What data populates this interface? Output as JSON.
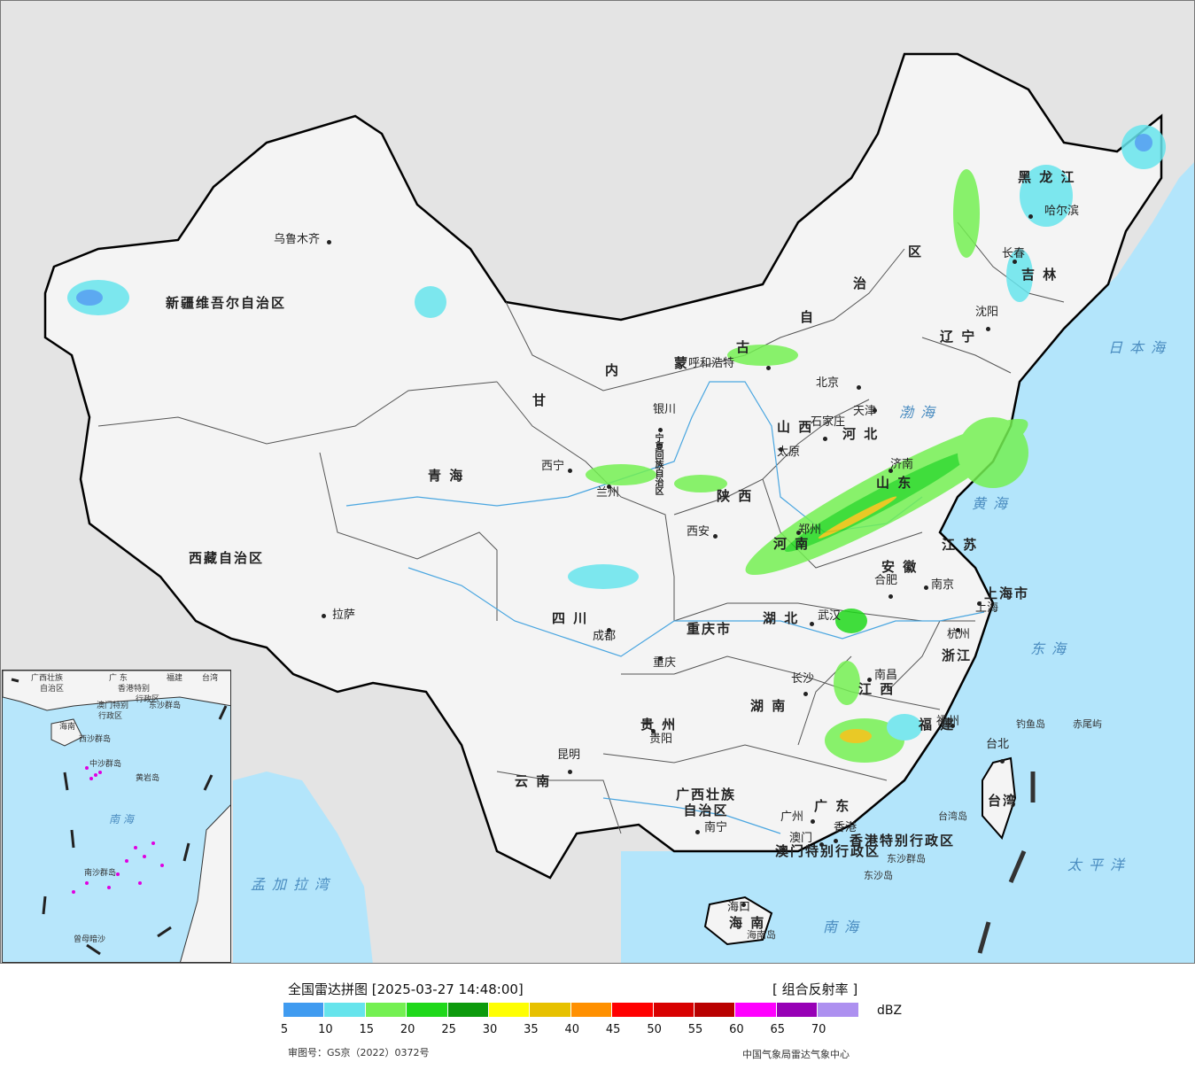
{
  "map": {
    "provinces": [
      {
        "id": "xinjiang",
        "name": "新疆维吾尔自治区"
      },
      {
        "id": "xizang",
        "name": "西藏自治区"
      },
      {
        "id": "qinghai",
        "name": "青     海"
      },
      {
        "id": "gansu",
        "name": "甘"
      },
      {
        "id": "neimenggu1",
        "name": "内"
      },
      {
        "id": "neimenggu2",
        "name": "蒙"
      },
      {
        "id": "neimenggu3",
        "name": "古"
      },
      {
        "id": "neimenggu4",
        "name": "自"
      },
      {
        "id": "neimenggu5",
        "name": "治"
      },
      {
        "id": "neimenggu6",
        "name": "区"
      },
      {
        "id": "heilongjiang",
        "name": "黑  龙  江"
      },
      {
        "id": "jilin",
        "name": "吉  林"
      },
      {
        "id": "liaoning",
        "name": "辽  宁"
      },
      {
        "id": "hebei",
        "name": "河  北"
      },
      {
        "id": "shanxi",
        "name": "山  西"
      },
      {
        "id": "shaanxi",
        "name": "陕  西"
      },
      {
        "id": "shandong",
        "name": "山  东"
      },
      {
        "id": "henan",
        "name": "河  南"
      },
      {
        "id": "jiangsu",
        "name": "江  苏"
      },
      {
        "id": "anhui",
        "name": "安  徽"
      },
      {
        "id": "hubei",
        "name": "湖  北"
      },
      {
        "id": "sichuan",
        "name": "四  川"
      },
      {
        "id": "chongqing",
        "name": "重庆市"
      },
      {
        "id": "hunan",
        "name": "湖  南"
      },
      {
        "id": "jiangxi",
        "name": "江  西"
      },
      {
        "id": "zhejiang",
        "name": "浙江"
      },
      {
        "id": "fujian",
        "name": "福  建"
      },
      {
        "id": "guizhou",
        "name": "贵  州"
      },
      {
        "id": "yunnan",
        "name": "云  南"
      },
      {
        "id": "guangxi",
        "name": "广西壮族\n自治区"
      },
      {
        "id": "guangdong",
        "name": "广  东"
      },
      {
        "id": "hainan",
        "name": "海  南"
      },
      {
        "id": "taiwan",
        "name": "台湾"
      },
      {
        "id": "shanghai",
        "name": "上海市"
      },
      {
        "id": "ningxia",
        "name": "宁夏回族自治区"
      },
      {
        "id": "hk",
        "name": "香港特别行政区"
      },
      {
        "id": "macau",
        "name": "澳门特别行政区"
      }
    ],
    "cities": [
      {
        "id": "urumqi",
        "name": "乌鲁木齐"
      },
      {
        "id": "lhasa",
        "name": "拉萨"
      },
      {
        "id": "xining",
        "name": "西宁"
      },
      {
        "id": "lanzhou",
        "name": "兰州"
      },
      {
        "id": "yinchuan",
        "name": "银川"
      },
      {
        "id": "hohhot",
        "name": "呼和浩特"
      },
      {
        "id": "beijing",
        "name": "北京"
      },
      {
        "id": "tianjin",
        "name": "天津"
      },
      {
        "id": "shijiazhuang",
        "name": "石家庄"
      },
      {
        "id": "taiyuan",
        "name": "太原"
      },
      {
        "id": "jinan",
        "name": "济南"
      },
      {
        "id": "zhengzhou",
        "name": "郑州"
      },
      {
        "id": "xian",
        "name": "西安"
      },
      {
        "id": "chengdu",
        "name": "成都"
      },
      {
        "id": "chongqing",
        "name": "重庆"
      },
      {
        "id": "wuhan",
        "name": "武汉"
      },
      {
        "id": "hefei",
        "name": "合肥"
      },
      {
        "id": "nanjing",
        "name": "南京"
      },
      {
        "id": "shanghai",
        "name": "上海"
      },
      {
        "id": "hangzhou",
        "name": "杭州"
      },
      {
        "id": "changsha",
        "name": "长沙"
      },
      {
        "id": "nanchang",
        "name": "南昌"
      },
      {
        "id": "fuzhou",
        "name": "福州"
      },
      {
        "id": "taibei",
        "name": "台北"
      },
      {
        "id": "guiyang",
        "name": "贵阳"
      },
      {
        "id": "kunming",
        "name": "昆明"
      },
      {
        "id": "nanning",
        "name": "南宁"
      },
      {
        "id": "guangzhou",
        "name": "广州"
      },
      {
        "id": "hongkong",
        "name": "香港"
      },
      {
        "id": "aomen",
        "name": "澳门"
      },
      {
        "id": "haikou",
        "name": "海口"
      },
      {
        "id": "shenyang",
        "name": "沈阳"
      },
      {
        "id": "changchun",
        "name": "长春"
      },
      {
        "id": "harbin",
        "name": "哈尔滨"
      }
    ],
    "seas": [
      {
        "id": "bohai",
        "name": "渤海"
      },
      {
        "id": "huanghai",
        "name": "黄海"
      },
      {
        "id": "donghai",
        "name": "东海"
      },
      {
        "id": "nanhai",
        "name": "南海"
      },
      {
        "id": "riben",
        "name": "日本海"
      },
      {
        "id": "taipingyang",
        "name": "太平洋"
      },
      {
        "id": "mengjiala",
        "name": "孟加拉湾"
      }
    ],
    "islands": [
      {
        "id": "diaoyu",
        "name": "钓鱼岛"
      },
      {
        "id": "chiwei",
        "name": "赤尾屿"
      },
      {
        "id": "taiwandao",
        "name": "台湾岛"
      },
      {
        "id": "hainandao",
        "name": "海南岛"
      },
      {
        "id": "dongsha",
        "name": "东沙群岛"
      },
      {
        "id": "dongshadao",
        "name": "东沙岛"
      }
    ],
    "inset": {
      "labels": [
        {
          "id": "i1",
          "name": "广西壮族"
        },
        {
          "id": "i2",
          "name": "自治区"
        },
        {
          "id": "i3",
          "name": "广  东"
        },
        {
          "id": "i4",
          "name": "福建"
        },
        {
          "id": "i5",
          "name": "台湾"
        },
        {
          "id": "i6",
          "name": "香港特别"
        },
        {
          "id": "i7",
          "name": "行政区"
        },
        {
          "id": "i8",
          "name": "澳门特别"
        },
        {
          "id": "i9",
          "name": "行政区"
        },
        {
          "id": "i10",
          "name": "东沙群岛"
        },
        {
          "id": "i11",
          "name": "海南"
        },
        {
          "id": "i12",
          "name": "西沙群岛"
        },
        {
          "id": "i13",
          "name": "中沙群岛"
        },
        {
          "id": "i14",
          "name": "黄岩岛"
        },
        {
          "id": "i15",
          "name": "南  海"
        },
        {
          "id": "i16",
          "name": "南沙群岛"
        },
        {
          "id": "i17",
          "name": "曾母暗沙"
        }
      ]
    }
  },
  "legend": {
    "title": "全国雷达拼图 [2025-03-27 14:48:00]",
    "product": "[ 组合反射率 ]",
    "unit": "dBZ",
    "colors": [
      "#409bf0",
      "#66e4ec",
      "#74f052",
      "#1fd81a",
      "#0c9a0c",
      "#fefe03",
      "#e7c100",
      "#ff9000",
      "#ff0000",
      "#d80000",
      "#b90000",
      "#ff00ff",
      "#9700b6",
      "#ad90f0"
    ],
    "ticks": [
      "5",
      "10",
      "15",
      "20",
      "25",
      "30",
      "35",
      "40",
      "45",
      "50",
      "55",
      "60",
      "65",
      "70"
    ],
    "approval": "审图号：GS京（2022）0372号",
    "agency": "中国气象局雷达气象中心"
  }
}
